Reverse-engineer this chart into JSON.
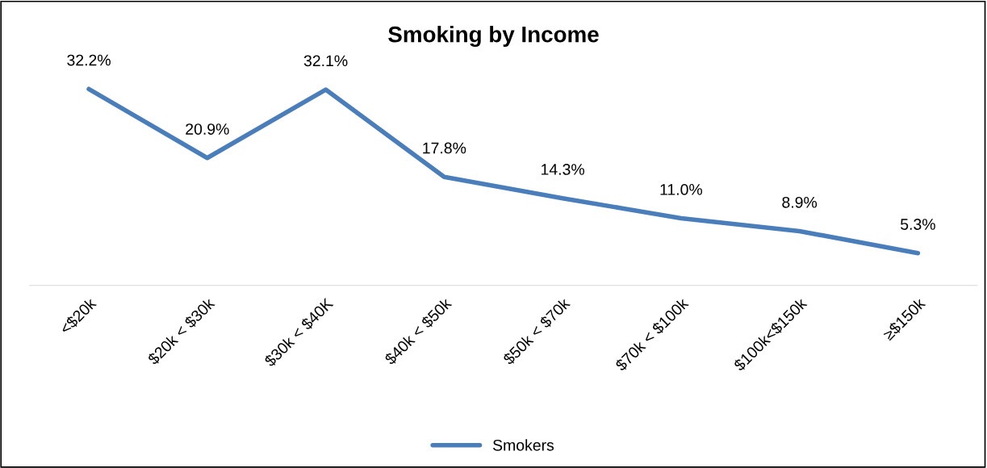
{
  "chart_data": {
    "type": "line",
    "title": "Smoking by Income",
    "categories": [
      "<$20k",
      "$20k < $30k",
      "$30k < $40K",
      "$40k < $50k",
      "$50k < $70k",
      "$70k < $100k",
      "$100k<$150k",
      "≥$150k"
    ],
    "series": [
      {
        "name": "Smokers",
        "color": "#4a7ebb",
        "values": [
          32.2,
          20.9,
          32.1,
          17.8,
          14.3,
          11.0,
          8.9,
          5.3
        ],
        "value_labels": [
          "32.2%",
          "20.9%",
          "32.1%",
          "17.8%",
          "14.3%",
          "11.0%",
          "8.9%",
          "5.3%"
        ]
      }
    ],
    "grid": false,
    "legend": "bottom",
    "marker": "none",
    "line_style": "solid",
    "tick_labels": "x"
  }
}
